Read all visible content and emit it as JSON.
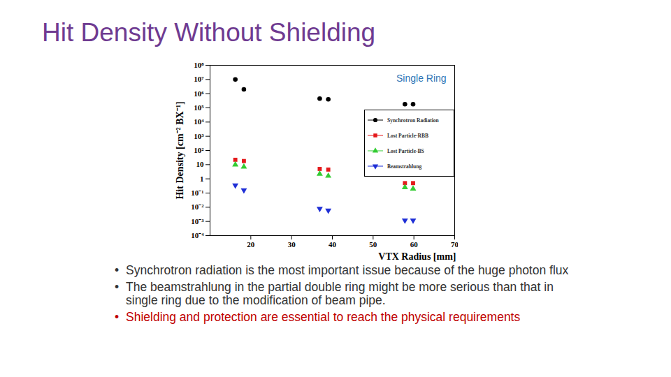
{
  "chart_data": {
    "type": "scatter",
    "title": "Hit Density Without Shielding",
    "annotations": [
      "Single Ring"
    ],
    "x_label": "VTX Radius [mm]",
    "y_label": "Hit Density [cm⁻² BX⁻¹]",
    "x": [
      16.2,
      18.3,
      36.9,
      39,
      57.8,
      59.8
    ],
    "series": [
      {
        "name": "Synchrotron Radiation",
        "color": "#000000",
        "marker": "circle",
        "values": [
          10000000,
          2000000,
          450000,
          400000,
          180000,
          180000
        ]
      },
      {
        "name": "Lost Particle-RBB",
        "color": "#e41a1c",
        "marker": "square",
        "values": [
          22,
          18,
          5,
          4.5,
          0.5,
          0.5
        ]
      },
      {
        "name": "Lost Particle-BS",
        "color": "#33cc33",
        "marker": "triangle",
        "values": [
          10,
          7,
          2.2,
          1.6,
          0.25,
          0.2
        ]
      },
      {
        "name": "Beamstrahlung",
        "color": "#1f2fd6",
        "marker": "triangle-down",
        "values": [
          0.35,
          0.16,
          0.008,
          0.006,
          0.0012,
          0.0012
        ]
      }
    ],
    "log": "y",
    "legend": "top-right",
    "grid": false,
    "xlim": [
      10,
      70
    ],
    "xticks": [
      20,
      30,
      40,
      50,
      60,
      70
    ],
    "ylim": [
      0.0001,
      100000000
    ],
    "yticks": [
      {
        "value": 0.0001,
        "label": "10⁻⁴"
      },
      {
        "value": 0.001,
        "label": "10⁻³"
      },
      {
        "value": 0.01,
        "label": "10⁻²"
      },
      {
        "value": 0.1,
        "label": "10⁻¹"
      },
      1,
      10,
      {
        "value": 100,
        "label": "10²"
      },
      {
        "value": 1000,
        "label": "10³"
      },
      {
        "value": 10000,
        "label": "10⁴"
      },
      {
        "value": 100000,
        "label": "10⁵"
      },
      {
        "value": 1000000,
        "label": "10⁶"
      },
      {
        "value": 10000000,
        "label": "10⁷"
      },
      {
        "value": 100000000,
        "label": "10⁸"
      }
    ],
    "bullets": [
      {
        "text": "Synchrotron radiation is the most important issue because of the huge photon flux",
        "color": "#333333"
      },
      {
        "text": "The beamstrahlung in the partial double ring might be more serious than that in single ring due to the modification of beam pipe.",
        "color": "#333333"
      },
      {
        "text": "Shielding and protection are essential to reach the physical requirements",
        "color": "#c00000"
      }
    ]
  }
}
